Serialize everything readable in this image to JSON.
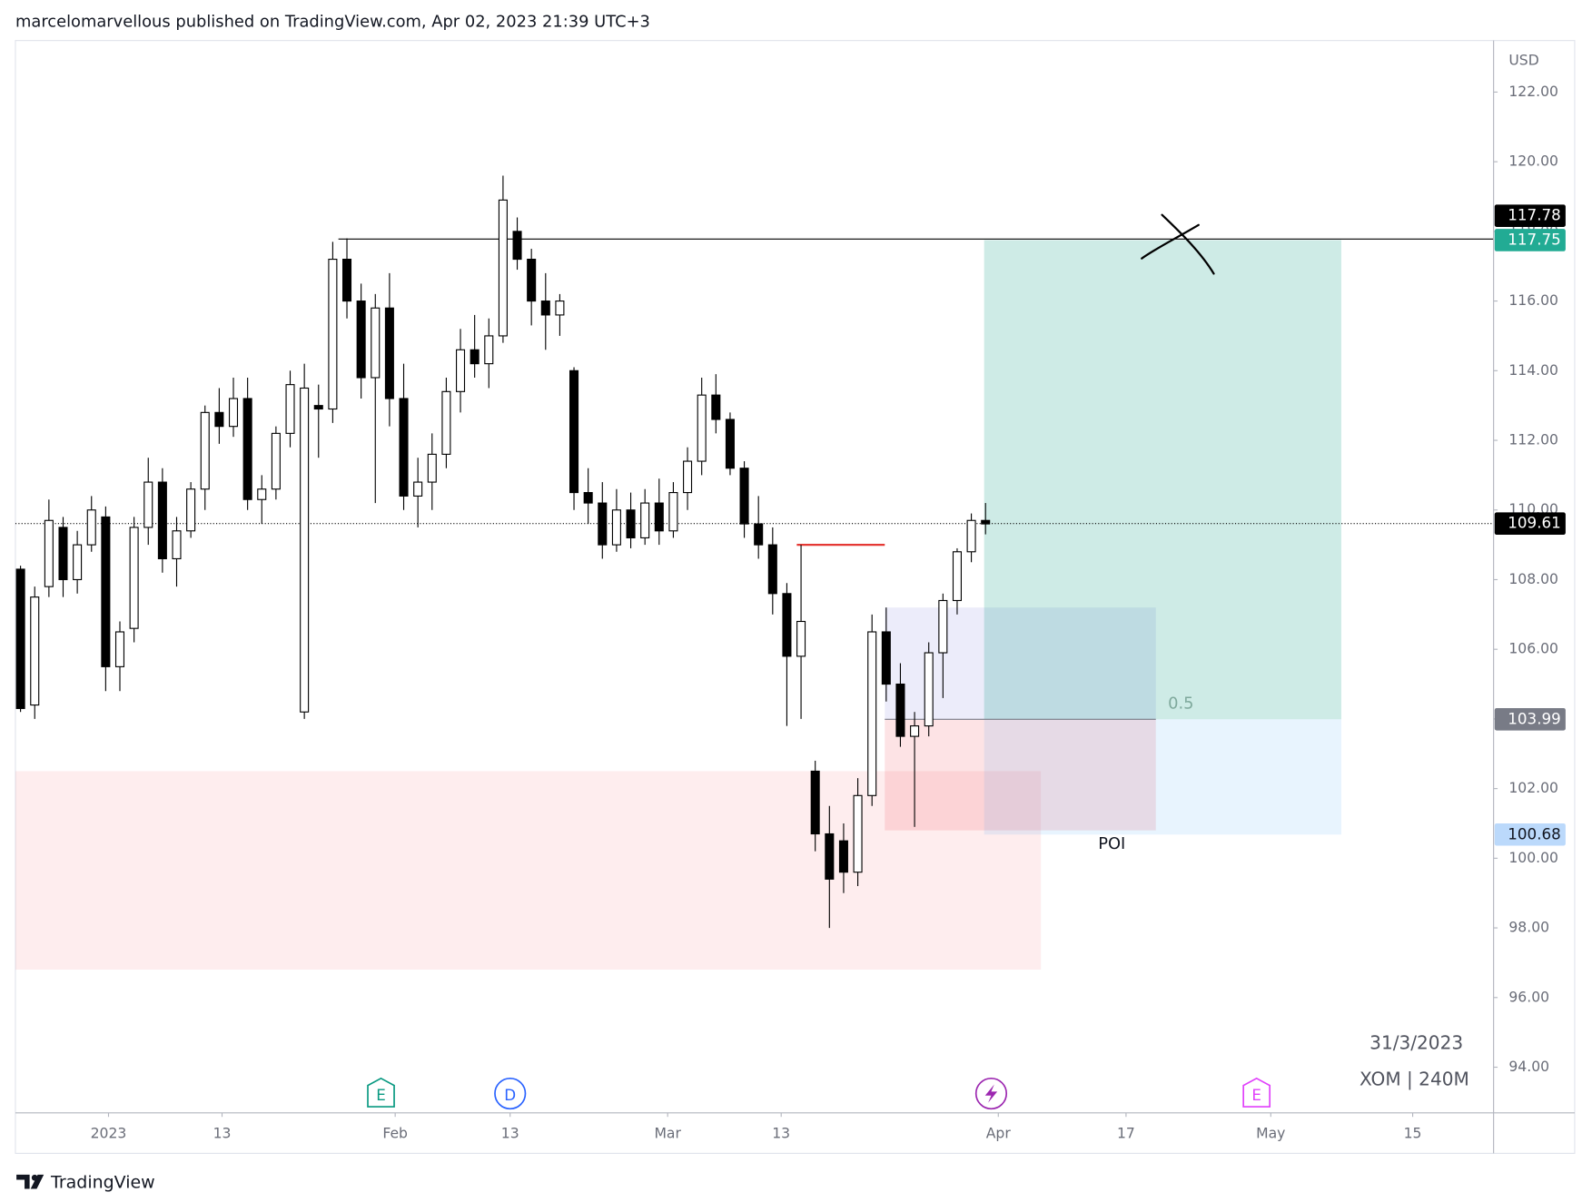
{
  "chart_data": {
    "type": "candlestick",
    "header": "marcelomarvellous published on TradingView.com, Apr 02, 2023 21:39 UTC+3",
    "brand": "TradingView",
    "currency": "USD",
    "date_label": "31/3/2023",
    "symbol_label": "XOM | 240M",
    "xlim": [
      -0.36,
      103.8
    ],
    "ylim": [
      92.69,
      123.48
    ],
    "yticks": [
      {
        "value": 94,
        "label": "94.00"
      },
      {
        "value": 96,
        "label": "96.00"
      },
      {
        "value": 98,
        "label": "98.00"
      },
      {
        "value": 100,
        "label": "100.00"
      },
      {
        "value": 102,
        "label": "102.00"
      },
      {
        "value": 104,
        "label": "104.00"
      },
      {
        "value": 106,
        "label": "106.00"
      },
      {
        "value": 108,
        "label": "108.00"
      },
      {
        "value": 110,
        "label": "110.00"
      },
      {
        "value": 112,
        "label": "112.00"
      },
      {
        "value": 114,
        "label": "114.00"
      },
      {
        "value": 116,
        "label": "116.00"
      },
      {
        "value": 118,
        "label": "118.00"
      },
      {
        "value": 120,
        "label": "120.00"
      },
      {
        "value": 122,
        "label": "122.00"
      }
    ],
    "xticks": [
      {
        "value": 6.2,
        "label": "2023"
      },
      {
        "value": 14.2,
        "label": "13"
      },
      {
        "value": 26.4,
        "label": "Feb"
      },
      {
        "value": 34.5,
        "label": "13"
      },
      {
        "value": 45.6,
        "label": "Mar"
      },
      {
        "value": 53.6,
        "label": "13"
      },
      {
        "value": 68.9,
        "label": "Apr"
      },
      {
        "value": 77.9,
        "label": "17"
      },
      {
        "value": 88.1,
        "label": "May"
      },
      {
        "value": 98.1,
        "label": "15"
      }
    ],
    "up_color": "#ffffff",
    "down_color": "#000000",
    "candles": {
      "open": [
        108.3,
        104.4,
        107.8,
        109.5,
        108.0,
        109.0,
        109.8,
        105.5,
        106.6,
        109.5,
        110.8,
        108.6,
        109.4,
        110.6,
        112.8,
        112.4,
        113.2,
        110.3,
        110.6,
        112.2,
        104.2,
        113.0,
        112.9,
        117.2,
        116.0,
        113.8,
        115.8,
        113.2,
        110.4,
        110.8,
        111.6,
        113.4,
        114.6,
        114.2,
        115.0,
        118.0,
        117.2,
        116.0,
        115.6,
        114.0,
        110.5,
        110.2,
        109.0,
        110.0,
        109.2,
        110.2,
        109.4,
        110.5,
        111.4,
        113.3,
        112.6,
        111.2,
        109.6,
        109.0,
        107.6,
        105.8,
        102.5,
        100.7,
        100.5,
        99.6,
        101.8,
        106.5,
        105.0,
        103.5,
        103.8,
        105.9,
        107.4,
        108.8,
        109.7
      ],
      "high": [
        108.4,
        107.8,
        110.3,
        109.8,
        109.4,
        110.4,
        110.1,
        106.8,
        109.8,
        111.5,
        111.2,
        109.8,
        110.8,
        113.0,
        113.5,
        113.8,
        113.8,
        111.0,
        112.4,
        114.0,
        114.2,
        113.6,
        117.7,
        117.8,
        116.5,
        116.2,
        116.8,
        114.2,
        111.5,
        112.2,
        113.8,
        115.2,
        115.6,
        115.5,
        119.6,
        118.4,
        117.5,
        116.8,
        116.2,
        114.1,
        111.2,
        110.8,
        110.6,
        110.5,
        110.6,
        110.9,
        110.8,
        111.8,
        113.8,
        113.9,
        112.8,
        111.4,
        110.4,
        109.5,
        107.9,
        109.0,
        102.8,
        101.5,
        101.0,
        102.3,
        107.0,
        107.2,
        105.6,
        104.2,
        106.2,
        107.6,
        108.9,
        109.9,
        110.2
      ],
      "low": [
        104.2,
        104.0,
        107.5,
        107.5,
        107.6,
        108.8,
        104.8,
        104.8,
        106.2,
        109.0,
        108.2,
        107.8,
        109.2,
        110.0,
        111.9,
        112.1,
        110.0,
        109.6,
        110.3,
        111.8,
        104.0,
        111.5,
        112.5,
        115.5,
        113.2,
        110.2,
        112.4,
        110.0,
        109.5,
        110.0,
        111.2,
        112.8,
        113.8,
        113.5,
        114.8,
        116.9,
        115.3,
        114.6,
        115.0,
        110.0,
        109.6,
        108.6,
        108.8,
        108.9,
        109.0,
        109.0,
        109.2,
        110.0,
        111.0,
        112.2,
        111.0,
        109.2,
        108.6,
        107.0,
        103.8,
        104.0,
        100.2,
        98.0,
        99.0,
        99.2,
        101.5,
        104.5,
        103.2,
        100.9,
        103.5,
        104.6,
        107.0,
        108.5,
        109.3
      ],
      "close": [
        104.3,
        107.5,
        109.7,
        108.0,
        109.0,
        110.0,
        105.5,
        106.5,
        109.5,
        110.8,
        108.6,
        109.4,
        110.6,
        112.8,
        112.4,
        113.2,
        110.3,
        110.6,
        112.2,
        113.6,
        113.5,
        112.9,
        117.2,
        116.0,
        113.8,
        115.8,
        113.2,
        110.4,
        110.8,
        111.6,
        113.4,
        114.6,
        114.2,
        115.0,
        118.9,
        117.2,
        116.0,
        115.6,
        116.0,
        110.5,
        110.2,
        109.0,
        110.0,
        109.2,
        110.2,
        109.4,
        110.5,
        111.4,
        113.3,
        112.6,
        111.2,
        109.6,
        109.0,
        107.6,
        105.8,
        106.8,
        100.7,
        99.4,
        99.6,
        101.8,
        106.5,
        105.0,
        103.5,
        103.8,
        105.9,
        107.4,
        108.8,
        109.7,
        109.6
      ]
    },
    "resistance_line": {
      "price": 117.78,
      "x": [
        22.4,
        103.8
      ],
      "color": "#000000"
    },
    "last_price_line": {
      "price": 109.61,
      "color": "#000000"
    },
    "red_line": {
      "price": 109.0,
      "x": [
        54.7,
        60.9
      ],
      "color": "#e53935"
    },
    "zones": [
      {
        "x": [
          -0.36,
          71.9
        ],
        "y": [
          96.8,
          102.5
        ],
        "color": "rgba(242,54,69,0.09)"
      },
      {
        "x": [
          60.9,
          80.0
        ],
        "y": [
          103.99,
          107.2
        ],
        "color": "rgba(120,123,220,0.14)"
      },
      {
        "x": [
          60.9,
          80.0
        ],
        "y": [
          100.8,
          103.99
        ],
        "color": "rgba(242,54,69,0.14)"
      }
    ],
    "position": {
      "x": [
        67.9,
        93.07
      ],
      "entry": 103.99,
      "target": 117.75,
      "stop": 100.68,
      "target_color": "rgba(8,153,129,0.2)",
      "stop_color": "rgba(33,150,243,0.1)"
    },
    "fib_label": {
      "text": "0.5",
      "price": 103.99,
      "x": 80.0
    },
    "poi": {
      "text": "POI",
      "price": 100.4,
      "x": 76.9
    },
    "price_labels": [
      {
        "value": 117.78,
        "bg": "#000000",
        "fg": "#ffffff"
      },
      {
        "value": 117.75,
        "bg": "#22ab94",
        "fg": "#ffffff"
      },
      {
        "value": 109.61,
        "bg": "#000000",
        "fg": "#ffffff"
      },
      {
        "value": 103.99,
        "bg": "#787b86",
        "fg": "#ffffff"
      },
      {
        "value": 100.68,
        "bg": "#bbd9fb",
        "fg": "#131722"
      }
    ],
    "events": [
      {
        "x": 25.4,
        "kind": "earnings",
        "label": "E",
        "color": "#089981"
      },
      {
        "x": 34.5,
        "kind": "dividend",
        "label": "D",
        "color": "#2962ff"
      },
      {
        "x": 68.4,
        "kind": "split",
        "color": "#9c27b0"
      },
      {
        "x": 87.1,
        "kind": "earnings",
        "label": "E",
        "color": "#e040fb"
      }
    ]
  }
}
